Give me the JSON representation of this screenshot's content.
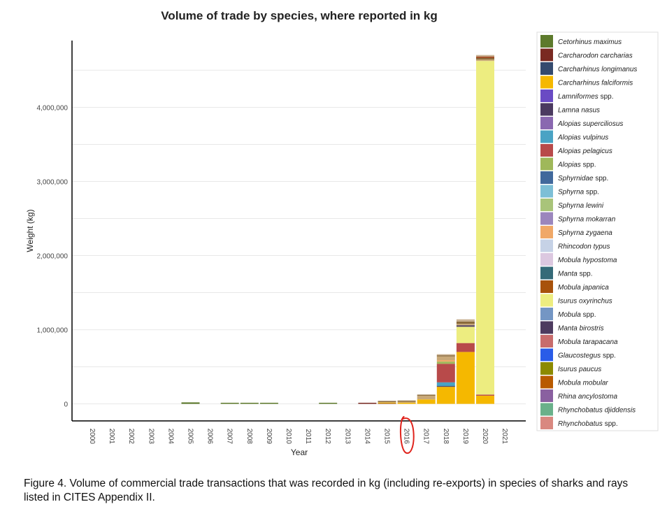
{
  "caption": "Figure 4. Volume of commercial trade transactions that was recorded in kg (including re-exports) in species of sharks and rays listed in CITES Appendix II.",
  "chart_data": {
    "type": "bar",
    "stacked": true,
    "title": "Volume of trade by species, where reported in kg",
    "xlabel": "Year",
    "ylabel": "Weight (kg)",
    "ylim": [
      -230000,
      4900000
    ],
    "yticks": [
      0,
      1000000,
      2000000,
      3000000,
      4000000
    ],
    "ytick_labels": [
      "0",
      "1,000,000",
      "2,000,000",
      "3,000,000",
      "4,000,000"
    ],
    "grid": true,
    "legend_position": "right",
    "categories": [
      "2000",
      "2001",
      "2002",
      "2003",
      "2004",
      "2005",
      "2006",
      "2007",
      "2008",
      "2009",
      "2010",
      "2011",
      "2012",
      "2013",
      "2014",
      "2015",
      "2016",
      "2017",
      "2018",
      "2019",
      "2020",
      "2021"
    ],
    "annotation": {
      "type": "hand-drawn red circle",
      "category": "2016",
      "color": "#e0231c"
    },
    "series": [
      {
        "name": "Cetorhinus maximus",
        "color": "#5d7a2c",
        "values": [
          0,
          0,
          0,
          0,
          0,
          20000,
          0,
          8000,
          8000,
          8000,
          0,
          0,
          10000,
          0,
          0,
          0,
          0,
          0,
          0,
          0,
          0,
          0
        ]
      },
      {
        "name": "Carcharodon carcharias",
        "color": "#7a2a22",
        "values": [
          0,
          0,
          0,
          0,
          0,
          0,
          0,
          0,
          0,
          0,
          0,
          0,
          0,
          0,
          5000,
          5000,
          0,
          0,
          0,
          0,
          0,
          0
        ]
      },
      {
        "name": "Carcharhinus longimanus",
        "color": "#344a6e",
        "values": [
          0,
          0,
          0,
          0,
          0,
          0,
          0,
          0,
          0,
          0,
          0,
          0,
          0,
          0,
          0,
          0,
          0,
          0,
          0,
          0,
          0,
          0
        ]
      },
      {
        "name": "Carcharhinus falciformis",
        "color": "#f5b800",
        "values": [
          0,
          0,
          0,
          0,
          0,
          0,
          0,
          0,
          0,
          0,
          0,
          0,
          0,
          0,
          0,
          10000,
          15000,
          60000,
          230000,
          700000,
          110000,
          0
        ]
      },
      {
        "name": "Lamniformes spp.",
        "color": "#6a4bc4",
        "values": [
          0,
          0,
          0,
          0,
          0,
          0,
          0,
          0,
          0,
          0,
          0,
          0,
          0,
          0,
          0,
          0,
          0,
          0,
          0,
          0,
          0,
          0
        ]
      },
      {
        "name": "Lamna nasus",
        "color": "#4b3a60",
        "values": [
          0,
          0,
          0,
          0,
          0,
          0,
          0,
          0,
          0,
          0,
          0,
          0,
          0,
          0,
          0,
          0,
          0,
          0,
          10000,
          0,
          0,
          0
        ]
      },
      {
        "name": "Alopias superciliosus",
        "color": "#8a68b0",
        "values": [
          0,
          0,
          0,
          0,
          0,
          0,
          0,
          0,
          0,
          0,
          0,
          0,
          0,
          0,
          0,
          0,
          0,
          0,
          0,
          0,
          0,
          0
        ]
      },
      {
        "name": "Alopias vulpinus",
        "color": "#4aa3c4",
        "values": [
          0,
          0,
          0,
          0,
          0,
          0,
          0,
          0,
          0,
          0,
          0,
          0,
          0,
          0,
          0,
          0,
          0,
          0,
          50000,
          0,
          0,
          0
        ]
      },
      {
        "name": "Alopias pelagicus",
        "color": "#b84a4a",
        "values": [
          0,
          0,
          0,
          0,
          0,
          0,
          0,
          0,
          0,
          0,
          0,
          0,
          0,
          0,
          0,
          0,
          0,
          0,
          250000,
          120000,
          15000,
          0
        ]
      },
      {
        "name": "Alopias spp.",
        "color": "#9fb85a",
        "values": [
          0,
          0,
          0,
          0,
          0,
          0,
          0,
          0,
          0,
          0,
          0,
          0,
          0,
          0,
          0,
          0,
          0,
          0,
          30000,
          0,
          0,
          0
        ]
      },
      {
        "name": "Sphyrnidae spp.",
        "color": "#41699c",
        "values": [
          0,
          0,
          0,
          0,
          0,
          0,
          0,
          0,
          0,
          0,
          0,
          0,
          0,
          0,
          0,
          0,
          0,
          0,
          0,
          0,
          0,
          0
        ]
      },
      {
        "name": "Sphyrna spp.",
        "color": "#7dbfd6",
        "values": [
          0,
          0,
          0,
          0,
          0,
          0,
          0,
          0,
          0,
          0,
          0,
          0,
          0,
          0,
          0,
          0,
          0,
          0,
          0,
          0,
          0,
          0
        ]
      },
      {
        "name": "Sphyrna lewini",
        "color": "#a9c47a",
        "values": [
          0,
          0,
          0,
          0,
          0,
          0,
          0,
          0,
          0,
          0,
          0,
          0,
          0,
          0,
          0,
          0,
          0,
          0,
          0,
          0,
          0,
          0
        ]
      },
      {
        "name": "Sphyrna mokarran",
        "color": "#9b86bd",
        "values": [
          0,
          0,
          0,
          0,
          0,
          0,
          0,
          0,
          0,
          0,
          0,
          0,
          0,
          0,
          0,
          0,
          0,
          0,
          0,
          0,
          0,
          0
        ]
      },
      {
        "name": "Sphyrna zygaena",
        "color": "#f0a868",
        "values": [
          0,
          0,
          0,
          0,
          0,
          0,
          0,
          0,
          0,
          0,
          0,
          0,
          0,
          0,
          0,
          0,
          0,
          0,
          20000,
          0,
          0,
          0
        ]
      },
      {
        "name": "Rhincodon typus",
        "color": "#c6d2e6",
        "values": [
          0,
          0,
          0,
          0,
          0,
          0,
          0,
          0,
          0,
          0,
          0,
          0,
          0,
          0,
          0,
          0,
          0,
          0,
          0,
          0,
          0,
          0
        ]
      },
      {
        "name": "Mobula hypostoma",
        "color": "#dcc8e0",
        "values": [
          0,
          0,
          0,
          0,
          0,
          0,
          0,
          0,
          0,
          0,
          0,
          0,
          0,
          0,
          0,
          0,
          0,
          0,
          0,
          0,
          0,
          0
        ]
      },
      {
        "name": "Manta spp.",
        "color": "#356a78",
        "values": [
          0,
          0,
          0,
          0,
          0,
          0,
          0,
          0,
          0,
          0,
          0,
          0,
          0,
          0,
          0,
          0,
          0,
          0,
          0,
          0,
          0,
          0
        ]
      },
      {
        "name": "Mobula japanica",
        "color": "#a8520c",
        "values": [
          0,
          0,
          0,
          0,
          0,
          0,
          0,
          0,
          0,
          0,
          0,
          0,
          0,
          0,
          0,
          0,
          0,
          0,
          0,
          0,
          0,
          0
        ]
      },
      {
        "name": "Isurus oxyrinchus",
        "color": "#eded80",
        "values": [
          0,
          0,
          0,
          0,
          0,
          0,
          0,
          0,
          0,
          0,
          0,
          0,
          0,
          0,
          0,
          0,
          0,
          0,
          0,
          220000,
          4500000,
          0
        ]
      },
      {
        "name": "Mobula spp.",
        "color": "#7496c4",
        "values": [
          0,
          0,
          0,
          0,
          0,
          0,
          0,
          0,
          0,
          0,
          0,
          0,
          0,
          0,
          0,
          0,
          0,
          0,
          0,
          0,
          0,
          0
        ]
      },
      {
        "name": "Manta birostris",
        "color": "#4d3b5f",
        "values": [
          0,
          0,
          0,
          0,
          0,
          0,
          0,
          0,
          0,
          0,
          0,
          0,
          0,
          0,
          0,
          0,
          0,
          0,
          0,
          20000,
          0,
          0
        ]
      },
      {
        "name": "Mobula tarapacana",
        "color": "#c86c6c",
        "values": [
          0,
          0,
          0,
          0,
          0,
          0,
          0,
          0,
          0,
          0,
          0,
          0,
          0,
          0,
          0,
          0,
          0,
          0,
          0,
          0,
          0,
          0
        ]
      },
      {
        "name": "Glaucostegus spp.",
        "color": "#2a5ce8",
        "values": [
          0,
          0,
          0,
          0,
          0,
          0,
          0,
          0,
          0,
          0,
          0,
          0,
          0,
          0,
          0,
          0,
          0,
          0,
          0,
          0,
          0,
          0
        ]
      },
      {
        "name": "Isurus paucus",
        "color": "#8c8a00",
        "values": [
          0,
          0,
          0,
          0,
          0,
          0,
          0,
          0,
          0,
          0,
          0,
          0,
          0,
          0,
          0,
          0,
          0,
          0,
          0,
          0,
          0,
          0
        ]
      },
      {
        "name": "Mobula mobular",
        "color": "#b85a00",
        "values": [
          0,
          0,
          0,
          0,
          0,
          0,
          0,
          0,
          0,
          0,
          0,
          0,
          0,
          0,
          0,
          0,
          0,
          0,
          0,
          0,
          0,
          0
        ]
      },
      {
        "name": "Rhina ancylostoma",
        "color": "#8a60a0",
        "values": [
          0,
          0,
          0,
          0,
          0,
          0,
          0,
          0,
          0,
          0,
          0,
          0,
          0,
          0,
          0,
          0,
          0,
          0,
          0,
          0,
          0,
          0
        ]
      },
      {
        "name": "Rhynchobatus djiddensis",
        "color": "#6ab08a",
        "values": [
          0,
          0,
          0,
          0,
          0,
          0,
          0,
          0,
          0,
          0,
          0,
          0,
          0,
          0,
          0,
          0,
          0,
          0,
          0,
          0,
          0,
          0
        ]
      },
      {
        "name": "Rhynchobatus spp.",
        "color": "#d98880",
        "values": [
          0,
          0,
          0,
          0,
          0,
          0,
          0,
          0,
          0,
          0,
          0,
          0,
          0,
          0,
          0,
          0,
          0,
          0,
          0,
          0,
          0,
          0
        ]
      },
      {
        "name": "",
        "color": "#c8a878",
        "values": [
          0,
          0,
          0,
          0,
          0,
          0,
          0,
          0,
          0,
          0,
          0,
          0,
          0,
          0,
          0,
          10000,
          15000,
          50000,
          50000,
          20000,
          20000,
          0
        ]
      },
      {
        "name": "",
        "color": "#8a6a3a",
        "values": [
          0,
          0,
          0,
          0,
          0,
          0,
          0,
          0,
          0,
          0,
          0,
          0,
          0,
          0,
          0,
          10000,
          10000,
          5000,
          15000,
          30000,
          20000,
          0
        ]
      },
      {
        "name": "",
        "color": "#a04a20",
        "values": [
          0,
          0,
          0,
          0,
          0,
          0,
          0,
          0,
          0,
          0,
          0,
          0,
          0,
          0,
          0,
          0,
          0,
          0,
          0,
          0,
          20000,
          0
        ]
      },
      {
        "name": "",
        "color": "#c8b090",
        "values": [
          0,
          0,
          0,
          0,
          0,
          0,
          0,
          0,
          0,
          0,
          0,
          0,
          0,
          0,
          0,
          0,
          0,
          0,
          10000,
          30000,
          20000,
          0
        ]
      }
    ]
  }
}
